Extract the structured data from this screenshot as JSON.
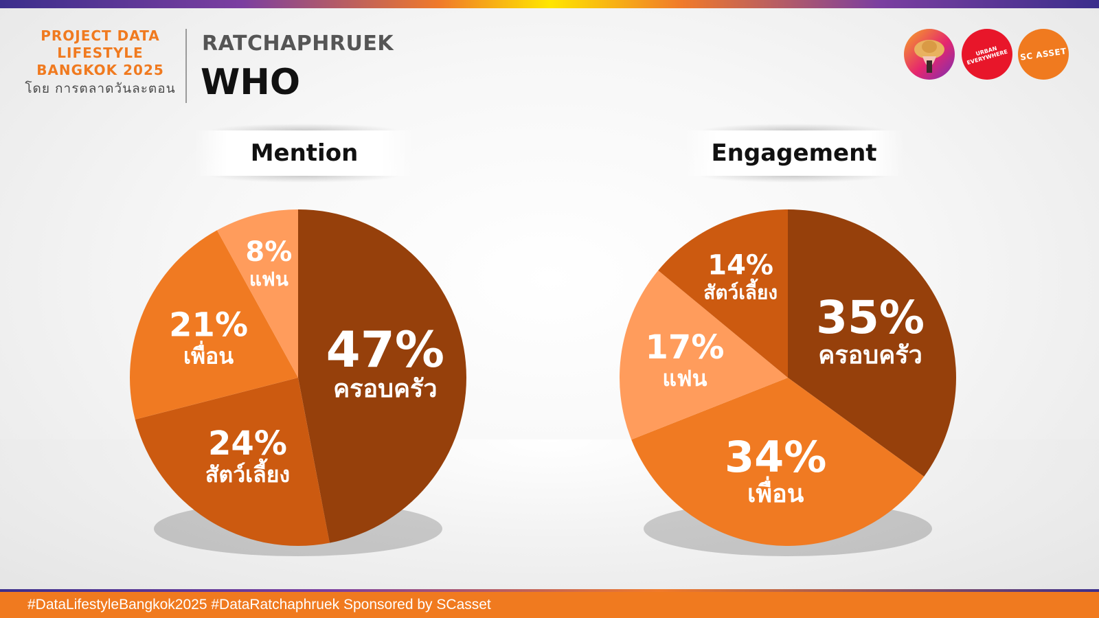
{
  "header": {
    "project_lines": [
      "PROJECT DATA",
      "LIFESTYLE",
      "BANGKOK 2025"
    ],
    "by_line": "โดย การตลาดวันละตอน",
    "location": "RATCHAPHRUEK",
    "title": "WHO"
  },
  "logos": {
    "urban_line1": "URBAN",
    "urban_line2": "EVERYWHERE",
    "sc_asset": "SC ASSET"
  },
  "footer": {
    "text": "#DataLifestyleBangkok2025 #DataRatchaphruek Sponsored by SCasset"
  },
  "colors": {
    "orange": "#f07a1f",
    "dark_brown": "#96400b",
    "burnt_orange": "#cc5a10",
    "bright_orange": "#f07a22",
    "light_orange": "#ff9c5c"
  },
  "chart_data": [
    {
      "type": "pie",
      "title": "Mention",
      "slices": [
        {
          "label": "ครอบครัว",
          "value": 47,
          "display": "47%",
          "color": "#96400b"
        },
        {
          "label": "สัตว์เลี้ยง",
          "value": 24,
          "display": "24%",
          "color": "#cc5a10"
        },
        {
          "label": "เพื่อน",
          "value": 21,
          "display": "21%",
          "color": "#f07a22"
        },
        {
          "label": "แฟน",
          "value": 8,
          "display": "8%",
          "color": "#ff9c5c"
        }
      ]
    },
    {
      "type": "pie",
      "title": "Engagement",
      "slices": [
        {
          "label": "ครอบครัว",
          "value": 35,
          "display": "35%",
          "color": "#96400b"
        },
        {
          "label": "เพื่อน",
          "value": 34,
          "display": "34%",
          "color": "#f07a22"
        },
        {
          "label": "แฟน",
          "value": 17,
          "display": "17%",
          "color": "#ff9c5c"
        },
        {
          "label": "สัตว์เลี้ยง",
          "value": 14,
          "display": "14%",
          "color": "#cc5a10"
        }
      ]
    }
  ]
}
